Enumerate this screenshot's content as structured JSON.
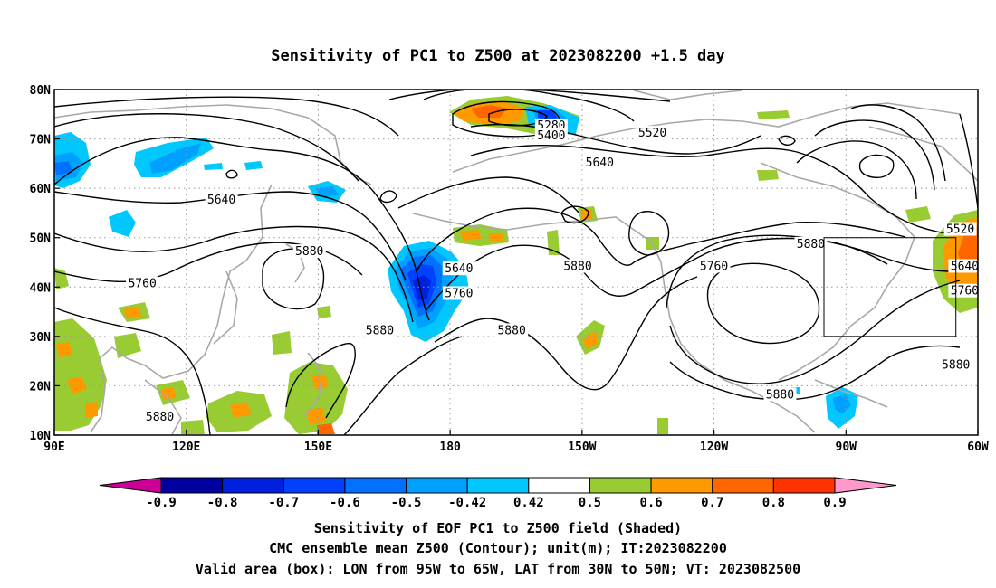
{
  "title": "Sensitivity of PC1 to Z500 at 2023082200 +1.5 day",
  "map": {
    "lon_range": [
      90,
      300
    ],
    "lat_range": [
      10,
      80
    ],
    "lon_ticks": [
      {
        "lon": 90,
        "label": "90E"
      },
      {
        "lon": 120,
        "label": "120E"
      },
      {
        "lon": 150,
        "label": "150E"
      },
      {
        "lon": 180,
        "label": "180"
      },
      {
        "lon": 210,
        "label": "150W"
      },
      {
        "lon": 240,
        "label": "120W"
      },
      {
        "lon": 270,
        "label": "90W"
      },
      {
        "lon": 300,
        "label": "60W"
      }
    ],
    "lat_ticks": [
      {
        "lat": 80,
        "label": "80N"
      },
      {
        "lat": 70,
        "label": "70N"
      },
      {
        "lat": 60,
        "label": "60N"
      },
      {
        "lat": 50,
        "label": "50N"
      },
      {
        "lat": 40,
        "label": "40N"
      },
      {
        "lat": 30,
        "label": "30N"
      },
      {
        "lat": 20,
        "label": "20N"
      },
      {
        "lat": 10,
        "label": "10N"
      }
    ],
    "valid_box": {
      "lon_min": 265,
      "lon_max": 295,
      "lat_min": 30,
      "lat_max": 50
    },
    "contour_labels": [
      {
        "text": "5280",
        "lon": 203,
        "lat": 72.5
      },
      {
        "text": "5400",
        "lon": 203,
        "lat": 70.5
      },
      {
        "text": "5520",
        "lon": 226,
        "lat": 71
      },
      {
        "text": "5640",
        "lon": 214,
        "lat": 65
      },
      {
        "text": "5640",
        "lon": 128,
        "lat": 57.5
      },
      {
        "text": "5640",
        "lon": 182,
        "lat": 43.5
      },
      {
        "text": "5760",
        "lon": 182,
        "lat": 38.5
      },
      {
        "text": "5760",
        "lon": 110,
        "lat": 40.5
      },
      {
        "text": "5760",
        "lon": 240,
        "lat": 44
      },
      {
        "text": "5760",
        "lon": 297,
        "lat": 39
      },
      {
        "text": "5880",
        "lon": 148,
        "lat": 47
      },
      {
        "text": "5880",
        "lon": 209,
        "lat": 44
      },
      {
        "text": "5880",
        "lon": 164,
        "lat": 31
      },
      {
        "text": "5880",
        "lon": 194,
        "lat": 31
      },
      {
        "text": "5880",
        "lon": 262,
        "lat": 48.5
      },
      {
        "text": "5880",
        "lon": 255,
        "lat": 18
      },
      {
        "text": "5880",
        "lon": 114,
        "lat": 13.5
      },
      {
        "text": "5880",
        "lon": 295,
        "lat": 24
      },
      {
        "text": "5520",
        "lon": 296,
        "lat": 51.5
      },
      {
        "text": "5640",
        "lon": 297,
        "lat": 44
      }
    ]
  },
  "colorbar": {
    "labels": [
      "-0.9",
      "-0.8",
      "-0.7",
      "-0.6",
      "-0.5",
      "-0.42",
      "0.42",
      "0.5",
      "0.6",
      "0.7",
      "0.8",
      "0.9"
    ],
    "colors": [
      "#0000a0",
      "#0020e0",
      "#0040ff",
      "#0070ff",
      "#00a0ff",
      "#00c8ff",
      "#ffffff",
      "#99cc33",
      "#ff9900",
      "#ff6600",
      "#ff3300",
      "#ff0000"
    ],
    "low_color": "#cc0099",
    "high_color": "#ff99cc"
  },
  "captions": [
    "Sensitivity of EOF PC1 to Z500 field (Shaded)",
    "CMC ensemble mean Z500 (Contour); unit(m); IT:2023082200",
    "Valid area (box): LON from 95W to 65W, LAT from 30N to 50N; VT: 2023082500"
  ]
}
